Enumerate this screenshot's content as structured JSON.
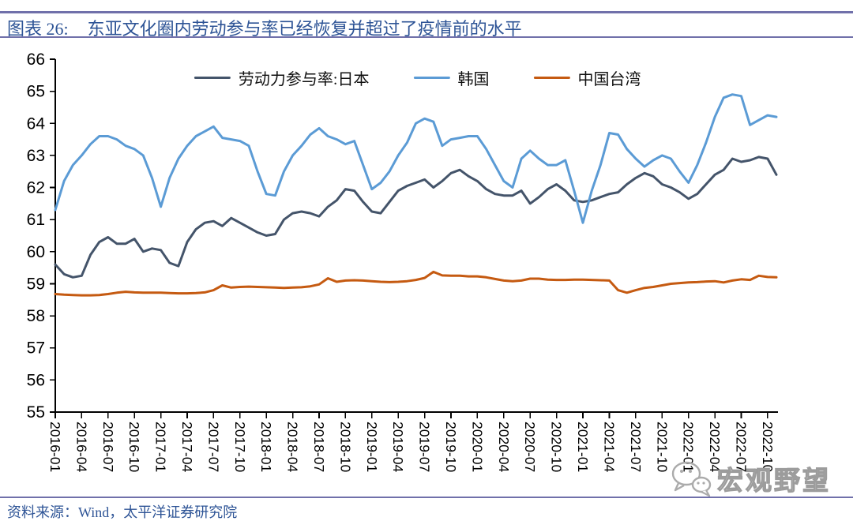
{
  "header": {
    "title_prefix": "图表 26:"
  },
  "footer": {
    "source": "资料来源：Wind，太平洋证券研究院"
  },
  "watermark": {
    "text": "宏观野望",
    "icon": "wechat-icon"
  },
  "colors": {
    "japan": "#44546A",
    "korea": "#5B9BD5",
    "taiwan": "#C55A11",
    "title_text": "#2E5496",
    "rule": "#7070AA",
    "axis": "#000000",
    "watermark_gray": "#A5A5A5"
  },
  "chart_data": {
    "type": "line",
    "title": "东亚文化圈内劳动参与率已经恢复并超过了疫情前的水平",
    "xlabel": "",
    "ylabel": "",
    "ylim": [
      55,
      66
    ],
    "grid": false,
    "legend_position": "top-center",
    "x_unit": "month",
    "x_start": "2016-01",
    "x_end": "2022-11",
    "x_tick_labels": [
      "2016-01",
      "2016-04",
      "2016-07",
      "2016-10",
      "2017-01",
      "2017-04",
      "2017-07",
      "2017-10",
      "2018-01",
      "2018-04",
      "2018-07",
      "2018-10",
      "2019-01",
      "2019-04",
      "2019-07",
      "2019-10",
      "2020-01",
      "2020-04",
      "2020-07",
      "2020-10",
      "2021-01",
      "2021-04",
      "2021-07",
      "2021-10",
      "2022-01",
      "2022-04",
      "2022-07",
      "2022-10"
    ],
    "y_ticks": [
      55,
      56,
      57,
      58,
      59,
      60,
      61,
      62,
      63,
      64,
      65,
      66
    ],
    "series": [
      {
        "name": "劳动力参与率:日本",
        "color_key": "japan",
        "values": [
          59.6,
          59.3,
          59.2,
          59.25,
          59.9,
          60.3,
          60.45,
          60.25,
          60.25,
          60.4,
          60.0,
          60.1,
          60.05,
          59.65,
          59.55,
          60.3,
          60.7,
          60.9,
          60.95,
          60.8,
          61.05,
          60.9,
          60.75,
          60.6,
          60.5,
          60.55,
          61.0,
          61.2,
          61.25,
          61.2,
          61.1,
          61.4,
          61.6,
          61.95,
          61.9,
          61.55,
          61.25,
          61.2,
          61.55,
          61.9,
          62.05,
          62.15,
          62.25,
          62.0,
          62.2,
          62.45,
          62.55,
          62.35,
          62.2,
          61.95,
          61.8,
          61.75,
          61.75,
          61.9,
          61.5,
          61.7,
          61.95,
          62.1,
          61.9,
          61.6,
          61.55,
          61.6,
          61.7,
          61.8,
          61.85,
          62.1,
          62.3,
          62.45,
          62.35,
          62.1,
          62.0,
          61.85,
          61.65,
          61.8,
          62.1,
          62.4,
          62.55,
          62.9,
          62.8,
          62.85,
          62.95,
          62.9,
          62.4
        ]
      },
      {
        "name": "韩国",
        "color_key": "korea",
        "values": [
          61.3,
          62.2,
          62.7,
          63.0,
          63.35,
          63.6,
          63.6,
          63.5,
          63.3,
          63.2,
          63.0,
          62.3,
          61.4,
          62.3,
          62.9,
          63.3,
          63.6,
          63.75,
          63.9,
          63.55,
          63.5,
          63.45,
          63.3,
          62.5,
          61.8,
          61.75,
          62.5,
          63.0,
          63.3,
          63.65,
          63.85,
          63.6,
          63.5,
          63.35,
          63.45,
          62.7,
          61.95,
          62.15,
          62.5,
          63.0,
          63.4,
          64.0,
          64.15,
          64.05,
          63.3,
          63.5,
          63.55,
          63.6,
          63.6,
          63.2,
          62.7,
          62.2,
          62.0,
          62.9,
          63.15,
          62.9,
          62.7,
          62.7,
          62.85,
          61.9,
          60.9,
          61.9,
          62.7,
          63.7,
          63.65,
          63.2,
          62.9,
          62.65,
          62.85,
          63.0,
          62.9,
          62.5,
          62.15,
          62.7,
          63.4,
          64.2,
          64.8,
          64.9,
          64.85,
          63.95,
          64.1,
          64.25,
          64.2
        ]
      },
      {
        "name": "中国台湾",
        "color_key": "taiwan",
        "values": [
          58.68,
          58.66,
          58.65,
          58.64,
          58.64,
          58.65,
          58.68,
          58.72,
          58.75,
          58.73,
          58.72,
          58.72,
          58.72,
          58.71,
          58.7,
          58.7,
          58.71,
          58.73,
          58.8,
          58.95,
          58.88,
          58.9,
          58.91,
          58.9,
          58.89,
          58.88,
          58.87,
          58.88,
          58.89,
          58.92,
          58.98,
          59.17,
          59.06,
          59.1,
          59.11,
          59.1,
          59.08,
          59.06,
          59.05,
          59.06,
          59.08,
          59.12,
          59.18,
          59.37,
          59.26,
          59.25,
          59.25,
          59.23,
          59.23,
          59.2,
          59.15,
          59.1,
          59.08,
          59.1,
          59.16,
          59.16,
          59.13,
          59.12,
          59.12,
          59.13,
          59.13,
          59.12,
          59.11,
          59.1,
          58.8,
          58.72,
          58.8,
          58.87,
          58.9,
          58.95,
          59.0,
          59.02,
          59.04,
          59.05,
          59.07,
          59.08,
          59.04,
          59.1,
          59.14,
          59.12,
          59.25,
          59.21,
          59.2
        ]
      }
    ]
  }
}
